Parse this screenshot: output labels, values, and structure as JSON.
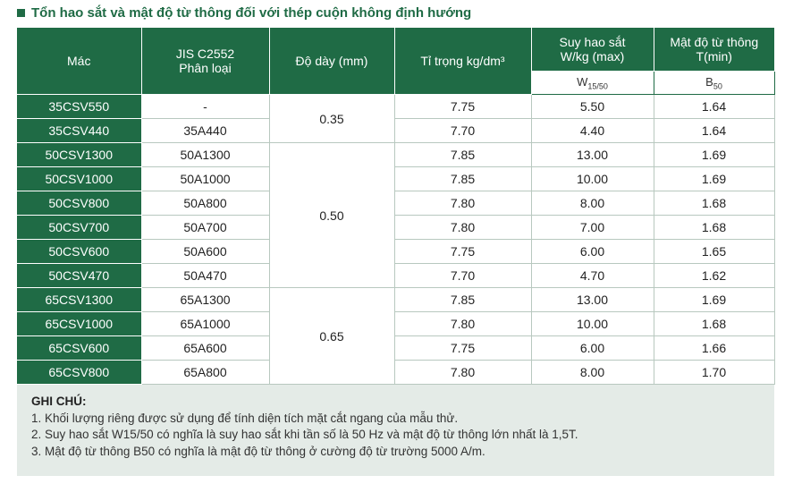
{
  "title": "Tổn hao sắt và mật độ từ thông đối với thép cuộn không định hướng",
  "headers": {
    "mac": "Mác",
    "jis_line1": "JIS C2552",
    "jis_line2": "Phân loại",
    "do_day": "Độ dày (mm)",
    "ti_trong": "Tỉ trọng kg/dm³",
    "suy_hao_line1": "Suy hao sắt",
    "suy_hao_line2": "W/kg (max)",
    "mat_do_line1": "Mật độ từ thông",
    "mat_do_line2": "T(min)",
    "w_sub_main": "W",
    "w_sub_index": "15/50",
    "b_sub_main": "B",
    "b_sub_index": "50"
  },
  "thickness_groups": [
    "0.35",
    "0.50",
    "0.65"
  ],
  "rows": [
    {
      "mac": "35CSV550",
      "jis": "-",
      "density": "7.75",
      "loss": "5.50",
      "flux": "1.64"
    },
    {
      "mac": "35CSV440",
      "jis": "35A440",
      "density": "7.70",
      "loss": "4.40",
      "flux": "1.64"
    },
    {
      "mac": "50CSV1300",
      "jis": "50A1300",
      "density": "7.85",
      "loss": "13.00",
      "flux": "1.69"
    },
    {
      "mac": "50CSV1000",
      "jis": "50A1000",
      "density": "7.85",
      "loss": "10.00",
      "flux": "1.69"
    },
    {
      "mac": "50CSV800",
      "jis": "50A800",
      "density": "7.80",
      "loss": "8.00",
      "flux": "1.68"
    },
    {
      "mac": "50CSV700",
      "jis": "50A700",
      "density": "7.80",
      "loss": "7.00",
      "flux": "1.68"
    },
    {
      "mac": "50CSV600",
      "jis": "50A600",
      "density": "7.75",
      "loss": "6.00",
      "flux": "1.65"
    },
    {
      "mac": "50CSV470",
      "jis": "50A470",
      "density": "7.70",
      "loss": "4.70",
      "flux": "1.62"
    },
    {
      "mac": "65CSV1300",
      "jis": "65A1300",
      "density": "7.85",
      "loss": "13.00",
      "flux": "1.69"
    },
    {
      "mac": "65CSV1000",
      "jis": "65A1000",
      "density": "7.80",
      "loss": "10.00",
      "flux": "1.68"
    },
    {
      "mac": "65CSV600",
      "jis": "65A600",
      "density": "7.75",
      "loss": "6.00",
      "flux": "1.66"
    },
    {
      "mac": "65CSV800",
      "jis": "65A800",
      "density": "7.80",
      "loss": "8.00",
      "flux": "1.70"
    }
  ],
  "notes": {
    "title": "GHI CHÚ:",
    "items": [
      "1. Khối lượng riêng được sử dụng để tính diện tích mặt cắt ngang của mẫu thử.",
      "2. Suy hao sắt W15/50 có nghĩa là suy hao sắt khi tần số là 50 Hz và mật độ từ thông lớn nhất là 1,5T.",
      "3. Mật độ từ thông B50 có nghĩa là mật độ từ thông ở cường độ từ trường 5000 A/m."
    ]
  },
  "colors": {
    "accent": "#1f6b45",
    "notes_bg": "#e4ebe7"
  }
}
